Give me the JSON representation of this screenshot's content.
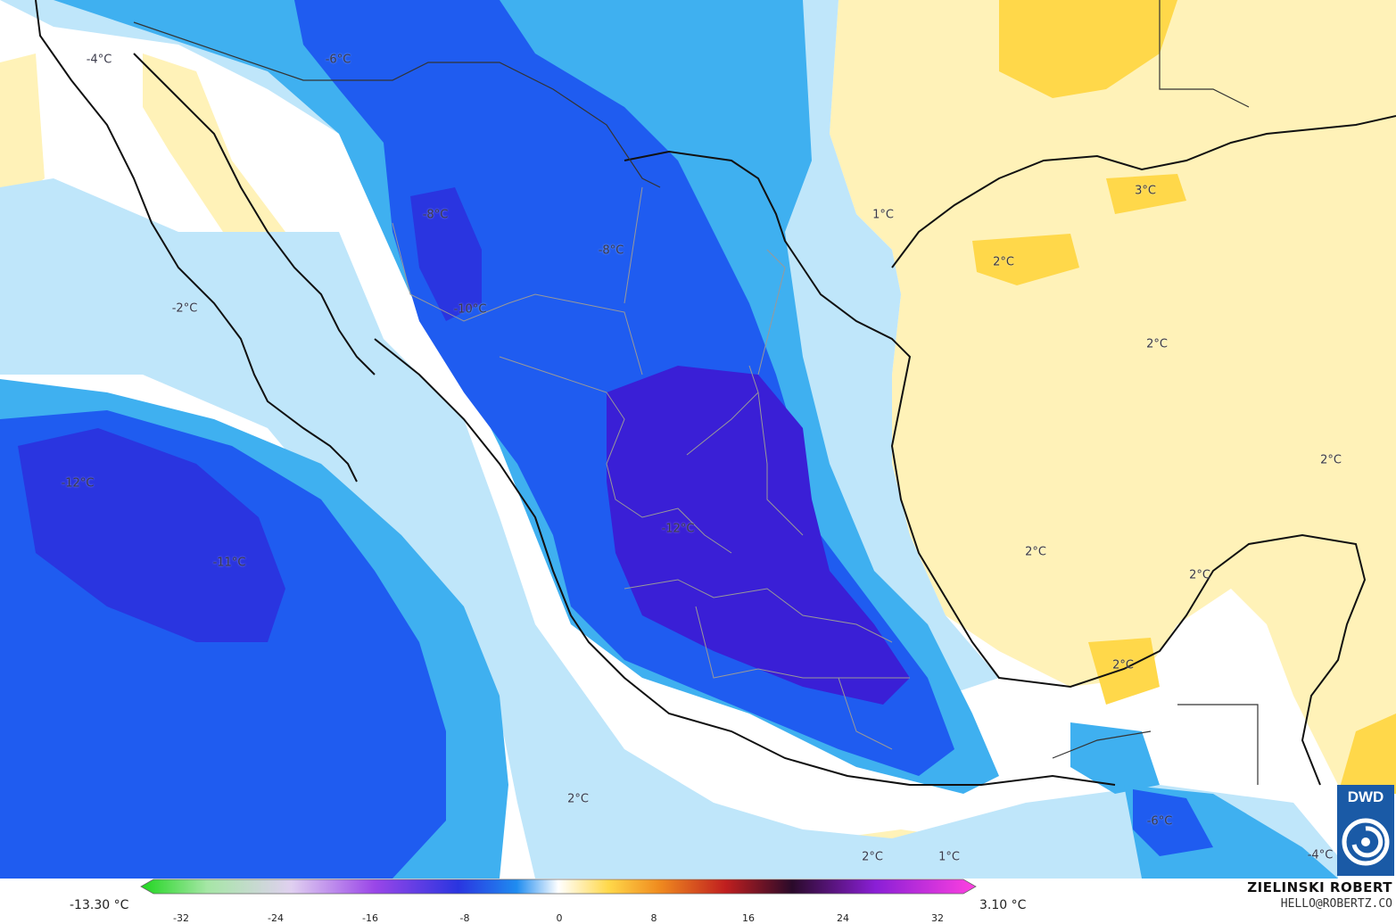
{
  "map": {
    "labels": [
      {
        "text": "-4°C"
      },
      {
        "text": "-6°C"
      },
      {
        "text": "-8°C"
      },
      {
        "text": "-8°C"
      },
      {
        "text": "-10°C"
      },
      {
        "text": "-2°C"
      },
      {
        "text": "-12°C"
      },
      {
        "text": "-11°C"
      },
      {
        "text": "-12°C"
      },
      {
        "text": "1°C"
      },
      {
        "text": "3°C"
      },
      {
        "text": "2°C"
      },
      {
        "text": "2°C"
      },
      {
        "text": "2°C"
      },
      {
        "text": "2°C"
      },
      {
        "text": "2°C"
      },
      {
        "text": "2°C"
      },
      {
        "text": "2°C"
      },
      {
        "text": "2°C"
      },
      {
        "text": "1°C"
      },
      {
        "text": "-6°C"
      },
      {
        "text": "-4°C"
      }
    ]
  },
  "legend": {
    "min_label": "-13.30 °C",
    "max_label": "3.10 °C",
    "ticks": [
      "-32",
      "-24",
      "-16",
      "-8",
      "0",
      "8",
      "16",
      "24",
      "32"
    ]
  },
  "credit": {
    "name": "ZIELINSKI ROBERT",
    "email": "HELLO@ROBERTZ.CO"
  },
  "logo": {
    "text": "DWD",
    "icon": "dwd-spiral-icon",
    "color": "#1a5aa6"
  },
  "colors": {
    "cold_deep": "#3a1fd6",
    "cold": "#1f5cf0",
    "cool": "#3fb0f0",
    "cool_light": "#bfe6fa",
    "neutral": "#ffffff",
    "warm_light": "#fff2b8",
    "warm": "#ffd84a"
  }
}
